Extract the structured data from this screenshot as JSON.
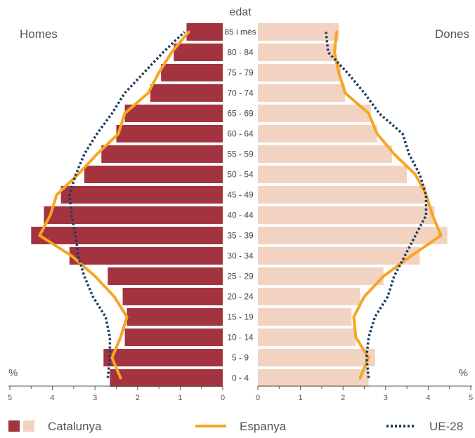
{
  "chart_data": {
    "type": "bar",
    "subtype": "population-pyramid",
    "title": "edat",
    "left_label": "Homes",
    "right_label": "Dones",
    "unit_left": "%",
    "unit_right": "%",
    "categories": [
      "0 - 4",
      "5 - 9",
      "10 - 14",
      "15 - 19",
      "20 - 24",
      "25 - 29",
      "30 - 34",
      "35 - 39",
      "40 - 44",
      "45 - 49",
      "50 - 54",
      "55 - 59",
      "60 - 64",
      "65 - 69",
      "70 - 74",
      "75 - 79",
      "80 - 84",
      "85 i més"
    ],
    "ticks": [
      "5",
      "4",
      "3",
      "2",
      "1",
      "0"
    ],
    "right_ticks": [
      "0",
      "1",
      "2",
      "3",
      "4",
      "5"
    ],
    "xlim": [
      0,
      5
    ],
    "grid": false,
    "series": [
      {
        "name": "Catalunya",
        "side": "men",
        "kind": "bar",
        "values": [
          2.65,
          2.8,
          2.3,
          2.25,
          2.35,
          2.7,
          3.6,
          4.5,
          4.2,
          3.8,
          3.25,
          2.85,
          2.5,
          2.3,
          1.7,
          1.45,
          1.15,
          0.85
        ]
      },
      {
        "name": "Catalunya",
        "side": "women",
        "kind": "bar",
        "values": [
          2.6,
          2.75,
          2.3,
          2.2,
          2.4,
          2.95,
          3.8,
          4.45,
          4.15,
          3.95,
          3.5,
          3.15,
          2.8,
          2.65,
          2.05,
          1.95,
          1.8,
          1.9
        ]
      },
      {
        "name": "Espanya",
        "side": "men",
        "kind": "line",
        "values": [
          2.4,
          2.6,
          2.4,
          2.25,
          2.55,
          3.0,
          3.55,
          4.3,
          4.05,
          3.9,
          3.4,
          2.95,
          2.45,
          2.3,
          1.75,
          1.5,
          1.2,
          0.8
        ]
      },
      {
        "name": "Espanya",
        "side": "women",
        "kind": "line",
        "values": [
          2.4,
          2.6,
          2.3,
          2.25,
          2.5,
          2.95,
          3.6,
          4.3,
          4.1,
          3.95,
          3.7,
          3.2,
          2.8,
          2.6,
          2.05,
          1.9,
          1.8,
          1.85
        ]
      },
      {
        "name": "UE-28",
        "side": "men",
        "kind": "line",
        "values": [
          2.7,
          2.65,
          2.65,
          2.75,
          3.05,
          3.25,
          3.4,
          3.45,
          3.55,
          3.6,
          3.45,
          3.25,
          2.95,
          2.6,
          2.3,
          1.85,
          1.4,
          0.9
        ]
      },
      {
        "name": "UE-28",
        "side": "women",
        "kind": "line",
        "values": [
          2.6,
          2.55,
          2.6,
          2.75,
          3.05,
          3.2,
          3.45,
          3.7,
          3.95,
          3.95,
          3.8,
          3.55,
          3.4,
          2.85,
          2.5,
          2.1,
          1.65,
          1.6
        ]
      }
    ],
    "legend": {
      "placement": "bottom",
      "items": [
        {
          "label": "Catalunya",
          "colors": [
            "#a3343f",
            "#f2d3c1"
          ]
        },
        {
          "label": "Espanya",
          "color": "#f5a623"
        },
        {
          "label": "UE-28",
          "color": "#1c3c62"
        }
      ]
    },
    "colors": {
      "men_bar": "#a3343f",
      "women_bar": "#f2d3c1",
      "espanya_line": "#f5a623",
      "ue_line": "#1c3c62",
      "axis": "#555555"
    }
  }
}
